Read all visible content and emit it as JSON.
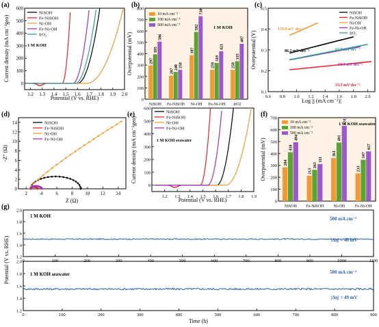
{
  "colors": {
    "NiSOH": "#000000",
    "Fe-NiSOH": "#e8202a",
    "Ni-OH": "#f39a35",
    "Fe-Ni-OH": "#9b2fc9",
    "IrO2": "#2f9e8f",
    "bar_10": "#f39a35",
    "bar_100": "#5aa532",
    "bar_500": "#9b59c9",
    "stab_line": "#2a5fa8",
    "panel_bg": "#fff3e6"
  },
  "panels": {
    "a": {
      "letter": "(a)",
      "label": "1 M KOH"
    },
    "b": {
      "letter": "(b)",
      "label": "1 M KOH"
    },
    "c": {
      "letter": "(c)"
    },
    "d": {
      "letter": "(d)"
    },
    "e": {
      "letter": "(e)",
      "label": "1 M KOH seawater"
    },
    "f": {
      "letter": "(f)",
      "label": "1 M KOH seawater"
    },
    "g": {
      "letter": "(g)",
      "top_label": "1 M KOH",
      "bottom_label": "1 M KOH seawater",
      "top_current": "500 mA cm⁻²",
      "bottom_current": "500 mA cm⁻²",
      "top_delta": "|Δη| = 40 mV",
      "bottom_delta": "|Δη| = 49 mV"
    }
  },
  "chart_data": [
    {
      "id": "a",
      "type": "line",
      "xlabel": "Potential (V vs. RHE)",
      "ylabel": "Current density (mA cm⁻²geo)",
      "xlim": [
        1.15,
        2.0
      ],
      "ylim": [
        -50,
        600
      ],
      "xticks": [
        "1.2",
        "1.3",
        "1.4",
        "1.5",
        "1.6",
        "1.7",
        "1.8",
        "1.9",
        "2.0"
      ],
      "yticks": [
        "0",
        "100",
        "200",
        "300",
        "400",
        "500",
        "600"
      ],
      "series": [
        {
          "name": "NiSOH",
          "onset": 1.6,
          "end": 1.79,
          "dip": true
        },
        {
          "name": "Fe-NiSOH",
          "onset": 1.47,
          "end": 1.54,
          "dip": true
        },
        {
          "name": "Ni-OH",
          "onset": 1.68,
          "end": 1.99,
          "dip": false
        },
        {
          "name": "Fe-Ni-OH",
          "onset": 1.56,
          "end": 1.7,
          "dip": false
        },
        {
          "name": "IrO2",
          "onset": 1.58,
          "end": 1.76,
          "dip": false
        }
      ],
      "legend": [
        "NiSOH",
        "Fe-NiSOH",
        "Ni-OH",
        "Fe-Ni-OH",
        "IrO2"
      ],
      "legend_position": "top-left"
    },
    {
      "id": "b",
      "type": "bar",
      "ylabel": "Overpotential (mV)",
      "ylim": [
        0,
        800
      ],
      "yticks": [
        "0",
        "100",
        "200",
        "300",
        "400",
        "500",
        "600",
        "700",
        "800"
      ],
      "categories": [
        "NiSOH",
        "Fe-NiSOH",
        "Ni-OH",
        "Fe-Ni-OH",
        "IrO2"
      ],
      "series": [
        {
          "name": "10 mA cm⁻²",
          "values": [
            297,
            207,
            387,
            259,
            258
          ]
        },
        {
          "name": "100 mA cm⁻²",
          "values": [
            395,
            240,
            592,
            319,
            335
          ]
        },
        {
          "name": "500 mA cm⁻²",
          "values": [
            506,
            258,
            730,
            421,
            487
          ]
        }
      ],
      "legend_position": "top-left"
    },
    {
      "id": "c",
      "type": "line",
      "xlabel": "Log |j (mA cm⁻²)|",
      "ylabel": "Overpotential (V)",
      "xlim": [
        0.6,
        2.1
      ],
      "ylim": [
        0.1,
        0.5
      ],
      "xticks": [
        "0.6",
        "0.8",
        "1.0",
        "1.2",
        "1.4",
        "1.6",
        "1.8",
        "2.0"
      ],
      "yticks": [
        "0.1",
        "0.2",
        "0.3",
        "0.4",
        "0.5"
      ],
      "series": [
        {
          "name": "NiSOH",
          "x": [
            0.9,
            1.8
          ],
          "y": [
            0.285,
            0.363
          ],
          "annotation": "86.2 mV dec⁻¹"
        },
        {
          "name": "Fe-NiSOH",
          "x": [
            0.9,
            2.05
          ],
          "y": [
            0.205,
            0.244
          ],
          "annotation": "33.5 mV dec⁻¹"
        },
        {
          "name": "Ni-OH",
          "x": [
            0.9,
            1.3
          ],
          "y": [
            0.37,
            0.43
          ],
          "annotation": "150.8 mV dec⁻¹"
        },
        {
          "name": "Fe-Ni-OH",
          "x": [
            0.9,
            1.9
          ],
          "y": [
            0.252,
            0.316
          ],
          "annotation": "63.3 mV dec⁻¹"
        },
        {
          "name": "IrO2",
          "x": [
            0.9,
            2.0
          ],
          "y": [
            0.253,
            0.327
          ],
          "annotation": "67.7 mV dec⁻¹"
        }
      ],
      "legend": [
        "NiSOH",
        "Fe-NiSOH",
        "Ni-OH",
        "Fe-Ni-OH",
        "IrO2"
      ],
      "legend_position": "top-right"
    },
    {
      "id": "d",
      "type": "scatter",
      "xlabel": "Z (Ω)",
      "ylabel": "-Z″ (Ω)",
      "xlim": [
        1,
        15
      ],
      "ylim": [
        0,
        15
      ],
      "xticks": [
        "2",
        "4",
        "6",
        "8",
        "10",
        "12",
        "14"
      ],
      "yticks": [
        "0",
        "2",
        "4",
        "6",
        "8",
        "10",
        "12",
        "14"
      ],
      "series": [
        {
          "name": "NiSOH",
          "shape": "semicircle",
          "start": 2.6,
          "end": 9.1,
          "height": 2.6
        },
        {
          "name": "Fe-NiSOH",
          "shape": "semicircle",
          "start": 2.5,
          "end": 3.5,
          "height": 0.4
        },
        {
          "name": "Ni-OH",
          "shape": "arc",
          "start": 2.4,
          "end": 14.4,
          "top": 14.2
        },
        {
          "name": "Fe-Ni-OH",
          "shape": "semicircle",
          "start": 2.6,
          "end": 4.0,
          "height": 0.6
        }
      ],
      "legend": [
        "NiSOH",
        "Fe-NiSOH",
        "Ni-OH",
        "Fe-Ni-OH"
      ],
      "legend_position": "top-left"
    },
    {
      "id": "e",
      "type": "line",
      "xlabel": "Potential (V vs. RHE)",
      "ylabel": "Current density (mA cm⁻²geo)",
      "xlim": [
        1.1,
        1.9
      ],
      "ylim": [
        -50,
        600
      ],
      "xticks": [
        "1.2",
        "1.3",
        "1.4",
        "1.5",
        "1.6",
        "1.7",
        "1.8",
        "1.9"
      ],
      "yticks": [
        "0",
        "100",
        "200",
        "300",
        "400",
        "500",
        "600"
      ],
      "series": [
        {
          "name": "NiSOH",
          "onset": 1.61,
          "end": 1.74,
          "dip": true
        },
        {
          "name": "Fe-NiSOH",
          "onset": 1.48,
          "end": 1.56,
          "dip": true
        },
        {
          "name": "Ni-OH",
          "onset": 1.68,
          "end": 1.88,
          "dip": false
        },
        {
          "name": "Fe-Ni-OH",
          "onset": 1.54,
          "end": 1.65,
          "dip": false
        }
      ],
      "legend": [
        "NiSOH",
        "Fe-NiSOH",
        "Ni-OH",
        "Fe-Ni-OH"
      ],
      "legend_position": "top-left"
    },
    {
      "id": "f",
      "type": "bar",
      "ylabel": "Overpotential (mV)",
      "ylim": [
        0,
        700
      ],
      "yticks": [
        "0",
        "100",
        "200",
        "300",
        "400",
        "500",
        "600",
        "700"
      ],
      "categories": [
        "NiSOH",
        "Fe-NiSOH",
        "Ni-OH",
        "Fe-Ni-OH"
      ],
      "series": [
        {
          "name": "10 mA cm⁻²",
          "values": [
            284,
            213,
            361,
            233
          ]
        },
        {
          "name": "100 mA cm⁻²",
          "values": [
            410,
            263,
            491,
            347
          ]
        },
        {
          "name": "500 mA cm⁻²",
          "values": [
            494,
            311,
            631,
            417
          ]
        }
      ],
      "legend_position": "top-left"
    },
    {
      "id": "g",
      "type": "line",
      "xlabel": "Time (h)",
      "ylabel": "Potential (V vs. RHE)",
      "subplots": [
        {
          "xlim": [
            0,
            1100
          ],
          "ylim": [
            1.2,
            2.0
          ],
          "mean": 1.5,
          "noise": 0.01,
          "xticks": [
            "0",
            "100",
            "200",
            "300",
            "400",
            "500",
            "600",
            "700",
            "800",
            "900",
            "1000",
            "1100"
          ],
          "yticks": [
            "1.2",
            "1.4",
            "1.6",
            "1.8",
            "2.0"
          ]
        },
        {
          "xlim": [
            0,
            900
          ],
          "ylim": [
            1.2,
            2.0
          ],
          "mean": 1.55,
          "noise": 0.015,
          "xticks": [
            "0",
            "100",
            "200",
            "300",
            "400",
            "500",
            "600",
            "700",
            "800",
            "900"
          ],
          "yticks": [
            "1.2",
            "1.4",
            "1.6",
            "1.8",
            "2.0"
          ]
        }
      ]
    }
  ]
}
